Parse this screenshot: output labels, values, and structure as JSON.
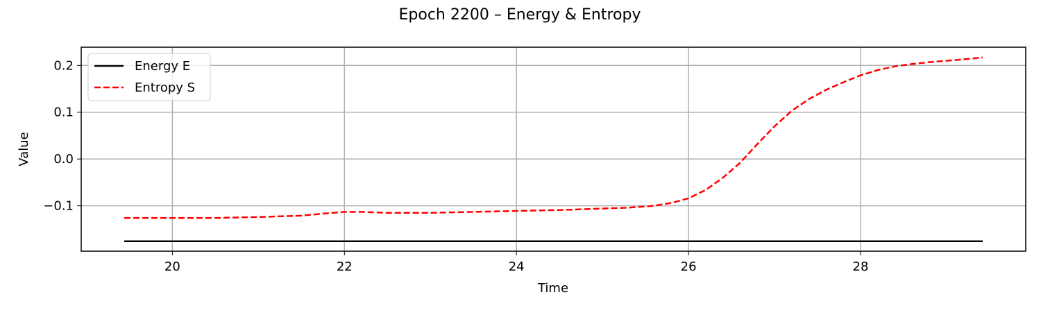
{
  "chart_data": {
    "type": "line",
    "title": "Epoch 2200 – Energy & Entropy",
    "xlabel": "Time",
    "ylabel": "Value",
    "xlim": [
      18.94,
      29.92
    ],
    "ylim": [
      -0.197,
      0.239
    ],
    "xticks": [
      20,
      22,
      24,
      26,
      28
    ],
    "xtick_labels": [
      "20",
      "22",
      "24",
      "26",
      "28"
    ],
    "yticks": [
      -0.1,
      0.0,
      0.1,
      0.2
    ],
    "ytick_labels": [
      "−0.1",
      "0.0",
      "0.1",
      "0.2"
    ],
    "grid": true,
    "legend": "top-left",
    "series": [
      {
        "name": "Energy E",
        "color": "#000000",
        "style": "solid",
        "x": [
          19.44,
          20.0,
          21.0,
          22.0,
          23.0,
          24.0,
          25.0,
          26.0,
          27.0,
          28.0,
          29.42
        ],
        "y": [
          -0.176,
          -0.176,
          -0.176,
          -0.176,
          -0.176,
          -0.176,
          -0.176,
          -0.176,
          -0.176,
          -0.176,
          -0.176
        ]
      },
      {
        "name": "Entropy S",
        "color": "#ff0000",
        "style": "dashed",
        "x": [
          19.44,
          20.0,
          20.5,
          21.0,
          21.5,
          21.8,
          22.0,
          22.2,
          22.5,
          23.0,
          23.5,
          24.0,
          24.5,
          25.0,
          25.3,
          25.6,
          25.8,
          26.0,
          26.2,
          26.4,
          26.6,
          26.8,
          27.0,
          27.2,
          27.4,
          27.6,
          27.8,
          28.0,
          28.2,
          28.4,
          28.6,
          28.8,
          29.0,
          29.2,
          29.42
        ],
        "y": [
          -0.126,
          -0.126,
          -0.126,
          -0.124,
          -0.121,
          -0.116,
          -0.113,
          -0.113,
          -0.115,
          -0.115,
          -0.113,
          -0.111,
          -0.109,
          -0.106,
          -0.104,
          -0.1,
          -0.094,
          -0.084,
          -0.066,
          -0.04,
          -0.008,
          0.032,
          0.07,
          0.103,
          0.128,
          0.148,
          0.164,
          0.179,
          0.19,
          0.198,
          0.203,
          0.207,
          0.21,
          0.213,
          0.217
        ]
      }
    ]
  }
}
